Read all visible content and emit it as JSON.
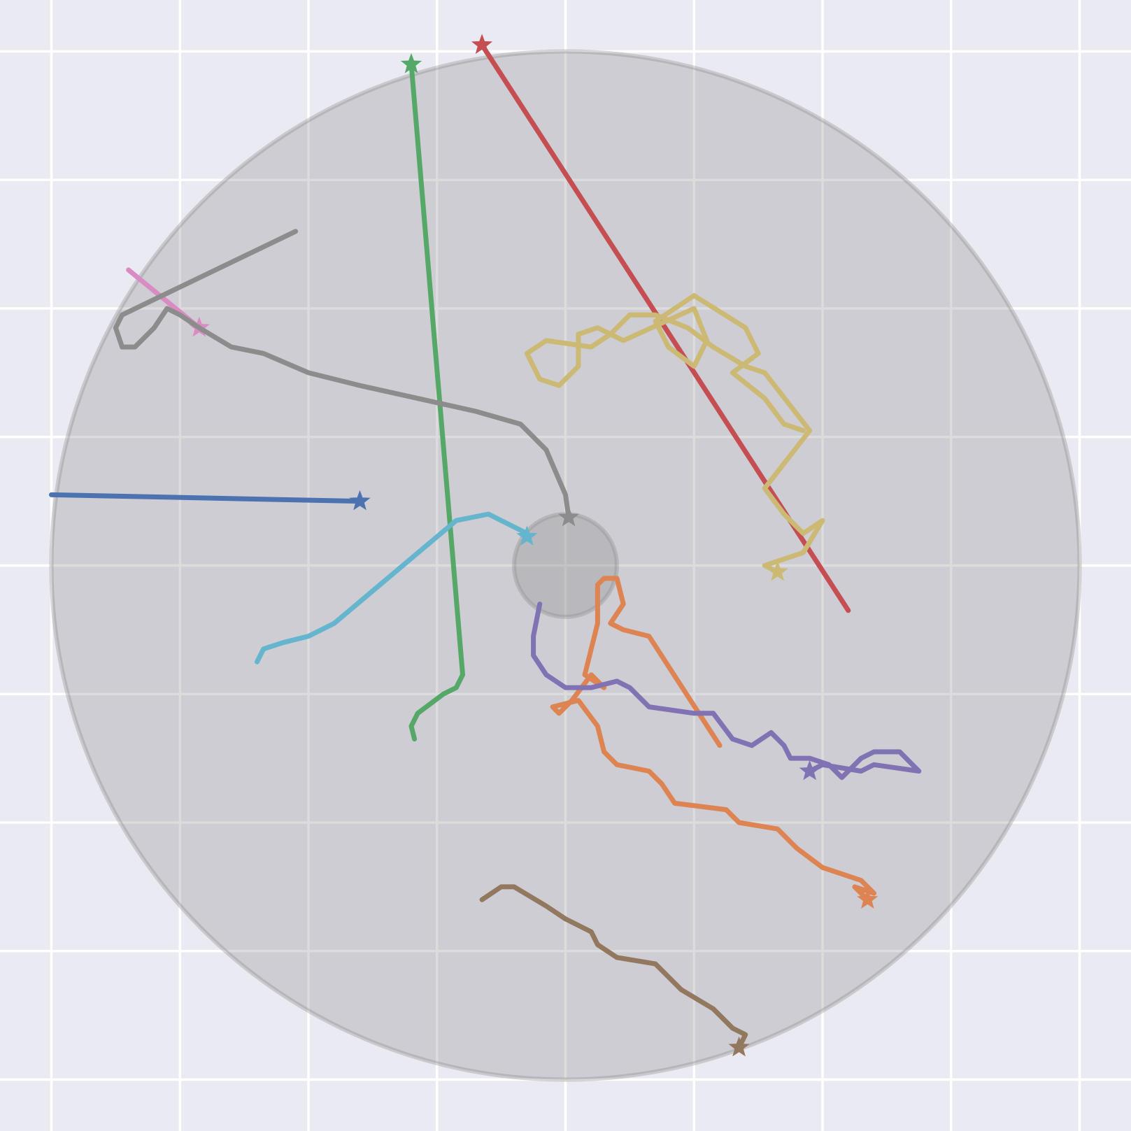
{
  "chart_data": {
    "type": "line",
    "title": "",
    "xlabel": "",
    "ylabel": "",
    "xlim": [
      -0.88,
      0.88
    ],
    "ylim": [
      -0.88,
      0.88
    ],
    "grid": true,
    "grid_ticks": [
      -0.8,
      -0.6,
      -0.4,
      -0.2,
      0.0,
      0.2,
      0.4,
      0.6,
      0.8
    ],
    "arena": {
      "center": [
        0,
        0
      ],
      "outer_radius": 0.8,
      "inner_radius": 0.08
    },
    "series": [
      {
        "color": "#4c72b0",
        "points": [
          [
            -0.8,
            0.11
          ],
          [
            -0.32,
            0.1
          ]
        ]
      },
      {
        "color": "#dd8452",
        "points": [
          [
            0.24,
            -0.28
          ],
          [
            0.13,
            -0.11
          ],
          [
            0.09,
            -0.1
          ],
          [
            0.07,
            -0.09
          ],
          [
            0.09,
            -0.06
          ],
          [
            0.08,
            -0.02
          ],
          [
            0.06,
            -0.02
          ],
          [
            0.05,
            -0.03
          ],
          [
            0.05,
            -0.09
          ],
          [
            0.03,
            -0.17
          ],
          [
            0.06,
            -0.19
          ],
          [
            0.04,
            -0.17
          ],
          [
            0.01,
            -0.21
          ],
          [
            -0.01,
            -0.23
          ],
          [
            -0.02,
            -0.22
          ],
          [
            0.02,
            -0.21
          ],
          [
            0.05,
            -0.25
          ],
          [
            0.06,
            -0.29
          ],
          [
            0.08,
            -0.31
          ],
          [
            0.13,
            -0.32
          ],
          [
            0.15,
            -0.34
          ],
          [
            0.17,
            -0.37
          ],
          [
            0.25,
            -0.38
          ],
          [
            0.27,
            -0.4
          ],
          [
            0.33,
            -0.41
          ],
          [
            0.36,
            -0.44
          ],
          [
            0.4,
            -0.47
          ],
          [
            0.46,
            -0.49
          ],
          [
            0.48,
            -0.51
          ],
          [
            0.45,
            -0.5
          ],
          [
            0.47,
            -0.52
          ]
        ]
      },
      {
        "color": "#55a868",
        "points": [
          [
            -0.235,
            -0.27
          ],
          [
            -0.24,
            -0.25
          ],
          [
            -0.23,
            -0.23
          ],
          [
            -0.19,
            -0.2
          ],
          [
            -0.17,
            -0.19
          ],
          [
            -0.16,
            -0.17
          ],
          [
            -0.24,
            0.78
          ]
        ]
      },
      {
        "color": "#c44e52",
        "points": [
          [
            0.44,
            -0.07
          ],
          [
            -0.13,
            0.81
          ]
        ]
      },
      {
        "color": "#8172b3",
        "points": [
          [
            -0.04,
            -0.06
          ],
          [
            -0.05,
            -0.11
          ],
          [
            -0.05,
            -0.14
          ],
          [
            -0.03,
            -0.17
          ],
          [
            0.0,
            -0.19
          ],
          [
            0.04,
            -0.19
          ],
          [
            0.08,
            -0.18
          ],
          [
            0.1,
            -0.19
          ],
          [
            0.13,
            -0.22
          ],
          [
            0.2,
            -0.23
          ],
          [
            0.23,
            -0.23
          ],
          [
            0.26,
            -0.27
          ],
          [
            0.29,
            -0.28
          ],
          [
            0.32,
            -0.26
          ],
          [
            0.34,
            -0.28
          ],
          [
            0.35,
            -0.3
          ],
          [
            0.38,
            -0.3
          ],
          [
            0.41,
            -0.31
          ],
          [
            0.43,
            -0.33
          ],
          [
            0.46,
            -0.3
          ],
          [
            0.48,
            -0.29
          ],
          [
            0.52,
            -0.29
          ],
          [
            0.54,
            -0.31
          ],
          [
            0.55,
            -0.32
          ],
          [
            0.48,
            -0.31
          ],
          [
            0.46,
            -0.32
          ],
          [
            0.4,
            -0.31
          ],
          [
            0.38,
            -0.32
          ]
        ]
      },
      {
        "color": "#937860",
        "points": [
          [
            -0.13,
            -0.52
          ],
          [
            -0.1,
            -0.5
          ],
          [
            -0.08,
            -0.5
          ],
          [
            -0.03,
            -0.53
          ],
          [
            0.0,
            -0.55
          ],
          [
            0.04,
            -0.57
          ],
          [
            0.05,
            -0.59
          ],
          [
            0.08,
            -0.61
          ],
          [
            0.14,
            -0.62
          ],
          [
            0.18,
            -0.66
          ],
          [
            0.23,
            -0.69
          ],
          [
            0.26,
            -0.72
          ],
          [
            0.28,
            -0.73
          ],
          [
            0.27,
            -0.75
          ]
        ]
      },
      {
        "color": "#da8bc3",
        "points": [
          [
            -0.68,
            0.46
          ],
          [
            -0.57,
            0.37
          ]
        ]
      },
      {
        "color": "#8c8c8c",
        "points": [
          [
            -0.42,
            0.52
          ],
          [
            -0.69,
            0.39
          ],
          [
            -0.7,
            0.37
          ],
          [
            -0.69,
            0.34
          ],
          [
            -0.67,
            0.34
          ],
          [
            -0.64,
            0.37
          ],
          [
            -0.62,
            0.4
          ],
          [
            -0.6,
            0.39
          ],
          [
            -0.57,
            0.37
          ],
          [
            -0.52,
            0.34
          ],
          [
            -0.47,
            0.33
          ],
          [
            -0.4,
            0.3
          ],
          [
            -0.32,
            0.28
          ],
          [
            -0.23,
            0.26
          ],
          [
            -0.14,
            0.24
          ],
          [
            -0.07,
            0.22
          ],
          [
            -0.03,
            0.18
          ],
          [
            0.0,
            0.11
          ],
          [
            0.005,
            0.075
          ]
        ]
      },
      {
        "color": "#ccb974",
        "points": [
          [
            0.37,
            0.21
          ],
          [
            0.34,
            0.22
          ],
          [
            0.31,
            0.26
          ],
          [
            0.26,
            0.3
          ],
          [
            0.3,
            0.33
          ],
          [
            0.28,
            0.37
          ],
          [
            0.2,
            0.42
          ],
          [
            0.14,
            0.38
          ],
          [
            0.16,
            0.34
          ],
          [
            0.2,
            0.31
          ],
          [
            0.22,
            0.35
          ],
          [
            0.2,
            0.4
          ],
          [
            0.09,
            0.35
          ],
          [
            0.05,
            0.37
          ],
          [
            0.02,
            0.36
          ],
          [
            0.02,
            0.31
          ],
          [
            -0.01,
            0.28
          ],
          [
            -0.04,
            0.29
          ],
          [
            -0.06,
            0.33
          ],
          [
            -0.03,
            0.35
          ],
          [
            0.04,
            0.34
          ],
          [
            0.07,
            0.36
          ],
          [
            0.1,
            0.39
          ],
          [
            0.14,
            0.39
          ],
          [
            0.19,
            0.37
          ],
          [
            0.23,
            0.34
          ],
          [
            0.28,
            0.31
          ],
          [
            0.31,
            0.3
          ],
          [
            0.38,
            0.21
          ],
          [
            0.31,
            0.12
          ],
          [
            0.34,
            0.08
          ],
          [
            0.37,
            0.05
          ],
          [
            0.4,
            0.07
          ],
          [
            0.37,
            0.02
          ],
          [
            0.34,
            0.01
          ],
          [
            0.31,
            0.0
          ],
          [
            0.33,
            -0.01
          ]
        ]
      },
      {
        "color": "#64b5cd",
        "points": [
          [
            -0.48,
            -0.15
          ],
          [
            -0.47,
            -0.13
          ],
          [
            -0.44,
            -0.12
          ],
          [
            -0.4,
            -0.11
          ],
          [
            -0.36,
            -0.09
          ],
          [
            -0.17,
            0.07
          ],
          [
            -0.12,
            0.08
          ],
          [
            -0.06,
            0.05
          ],
          [
            -0.06,
            0.045
          ]
        ]
      }
    ]
  }
}
